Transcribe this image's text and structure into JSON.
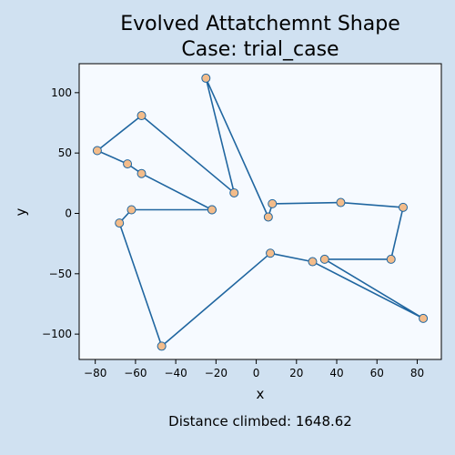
{
  "chart_data": {
    "type": "line",
    "title_line1": "Evolved Attatchemnt Shape",
    "title_line2": "Case: trial_case",
    "xlabel": "x",
    "ylabel": "y",
    "xlim": [
      -88,
      92
    ],
    "ylim": [
      -121,
      124
    ],
    "xticks": [
      -80,
      -60,
      -40,
      -20,
      0,
      20,
      40,
      60,
      80
    ],
    "yticks": [
      -100,
      -50,
      0,
      50,
      100
    ],
    "grid": false,
    "series": [
      {
        "line_color": "#2066a0",
        "marker_fill": "#f3bc8a",
        "marker_edge": "#2066a0",
        "points": [
          {
            "x": -22,
            "y": 3
          },
          {
            "x": -62,
            "y": 3
          },
          {
            "x": -68,
            "y": -8
          },
          {
            "x": -47,
            "y": -110
          },
          {
            "x": 7,
            "y": -33
          },
          {
            "x": 28,
            "y": -40
          },
          {
            "x": 83,
            "y": -87
          },
          {
            "x": 34,
            "y": -38
          },
          {
            "x": 67,
            "y": -38
          },
          {
            "x": 73,
            "y": 5
          },
          {
            "x": 42,
            "y": 9
          },
          {
            "x": 8,
            "y": 8
          },
          {
            "x": 6,
            "y": -3
          },
          {
            "x": -25,
            "y": 112
          },
          {
            "x": -11,
            "y": 17
          },
          {
            "x": -57,
            "y": 81
          },
          {
            "x": -79,
            "y": 52
          },
          {
            "x": -64,
            "y": 41
          },
          {
            "x": -57,
            "y": 33
          },
          {
            "x": -22,
            "y": 3
          }
        ]
      }
    ]
  },
  "footer": {
    "label": "Distance climbed:",
    "value": "1648.62"
  }
}
